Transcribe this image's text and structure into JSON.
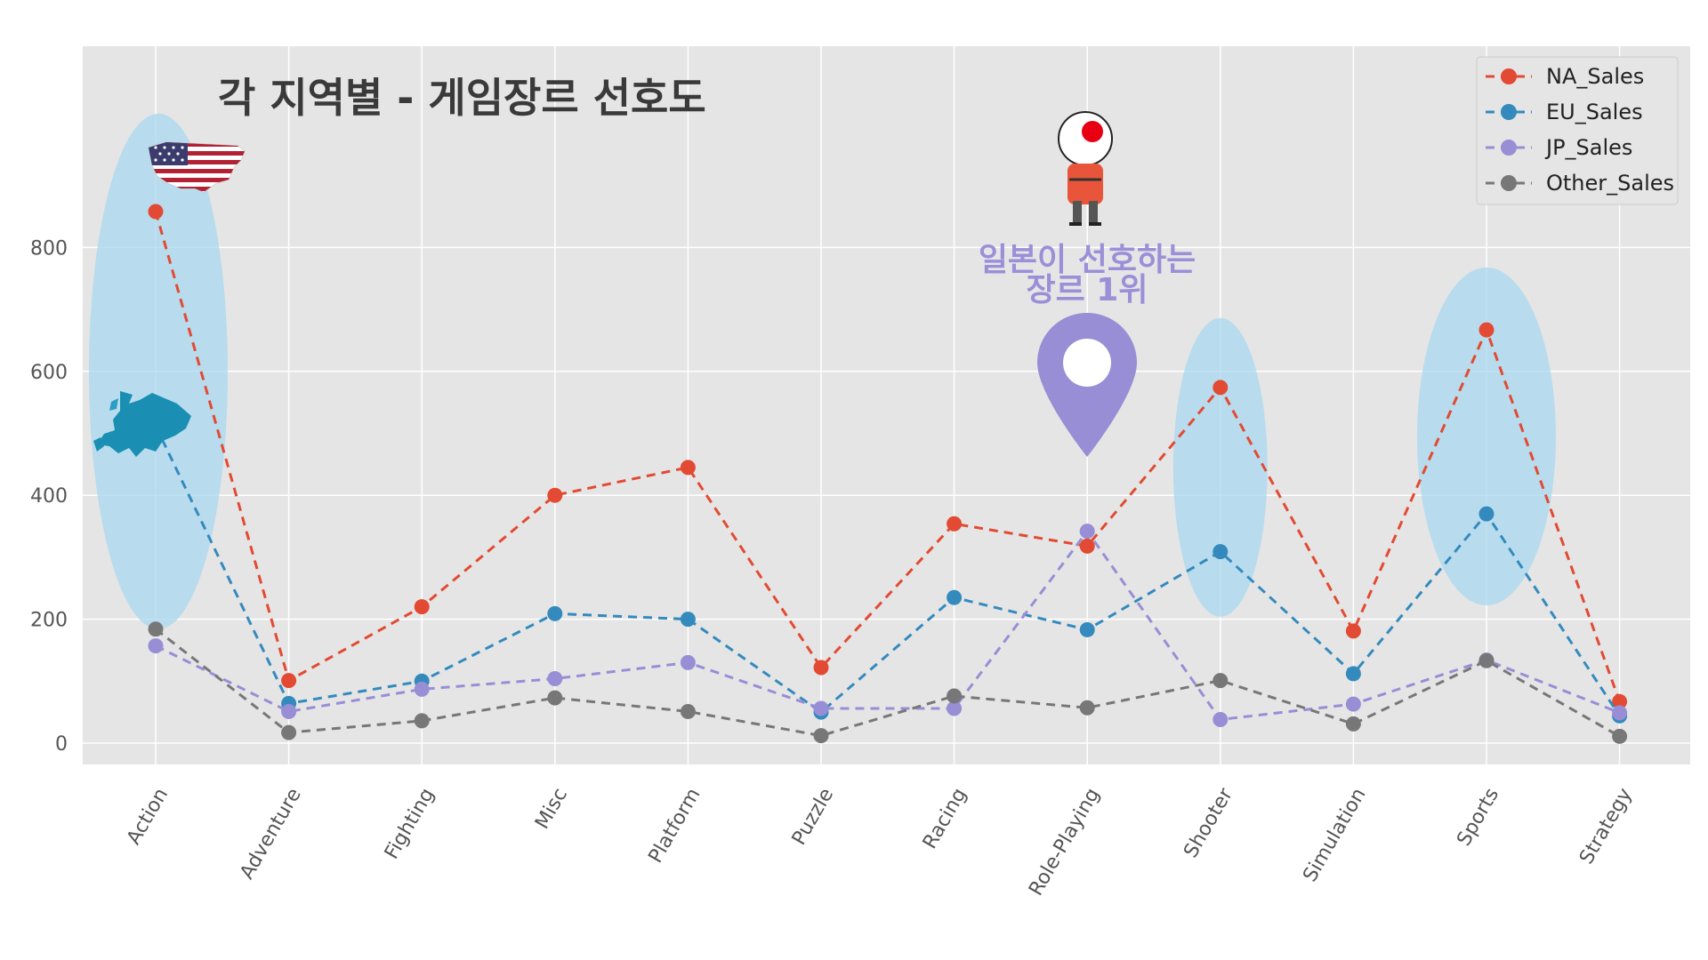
{
  "chart_data": {
    "type": "line",
    "title": "각 지역별 - 게임장르 선호도",
    "xlabel": "",
    "ylabel": "",
    "categories": [
      "Action",
      "Adventure",
      "Fighting",
      "Misc",
      "Platform",
      "Puzzle",
      "Racing",
      "Role-Playing",
      "Shooter",
      "Simulation",
      "Sports",
      "Strategy"
    ],
    "yticks": [
      0,
      200,
      400,
      600,
      800
    ],
    "ylim": [
      -30,
      900
    ],
    "grid": true,
    "legend_position": "top-right",
    "line_style": "dashed",
    "series": [
      {
        "name": "NA_Sales",
        "color": "#e24a33",
        "values": [
          858,
          101,
          220,
          400,
          445,
          122,
          354,
          318,
          574,
          181,
          667,
          67
        ]
      },
      {
        "name": "EU_Sales",
        "color": "#348abd",
        "values": [
          512,
          64,
          100,
          209,
          200,
          50,
          235,
          183,
          309,
          112,
          370,
          44
        ]
      },
      {
        "name": "JP_Sales",
        "color": "#988ed5",
        "values": [
          157,
          51,
          87,
          104,
          130,
          56,
          56,
          342,
          38,
          63,
          134,
          49
        ]
      },
      {
        "name": "Other_Sales",
        "color": "#777777",
        "values": [
          184,
          17,
          36,
          73,
          51,
          12,
          76,
          57,
          101,
          31,
          133,
          11
        ]
      }
    ],
    "annotation": {
      "text_line1": "일본이 선호하는",
      "text_line2": "장르 1위",
      "category": "Role-Playing",
      "color": "#988ed5"
    },
    "highlight_categories": [
      "Action",
      "Shooter",
      "Sports"
    ],
    "icons": [
      "usa-flag-map-icon",
      "europe-map-icon",
      "japan-character-icon",
      "map-pin-icon"
    ]
  }
}
